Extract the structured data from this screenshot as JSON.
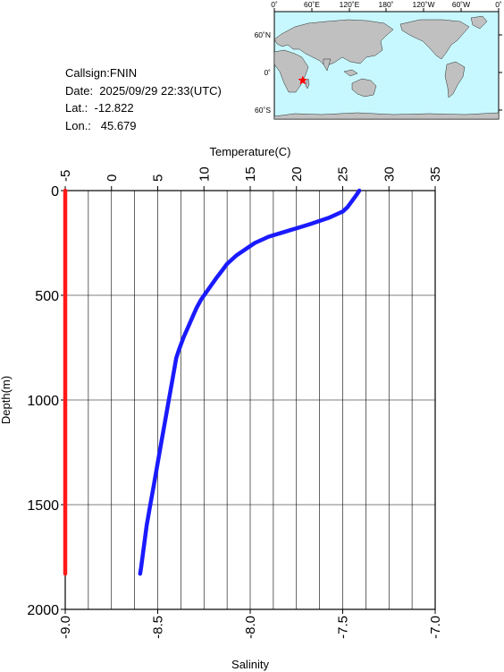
{
  "station": {
    "callsign": "Callsign:FNIN",
    "date": "Date:  2025/09/29 22:33(UTC)",
    "lat": "Lat.:  -12.822",
    "lon": "Lon.:   45.679"
  },
  "map": {
    "lon_labels": [
      "0˚",
      "60˚E",
      "120˚E",
      "180˚",
      "120˚W",
      "60˚W",
      "0˚"
    ],
    "lat_labels": [
      "60˚N",
      "0˚",
      "60˚S"
    ],
    "ocean_color": "#c8f8ff",
    "land_color": "#c0c0c0",
    "marker_color": "#ff0000",
    "marker_lat": -12.822,
    "marker_lon": 45.679
  },
  "chart_data": {
    "type": "line",
    "top_axis_label": "Temperature(C)",
    "bottom_axis_label": "Salinity",
    "ylabel": "Depth(m)",
    "temperature_ticks": [
      "-5",
      "0",
      "5",
      "10",
      "15",
      "20",
      "25",
      "30",
      "35"
    ],
    "salinity_ticks": [
      "-9.0",
      "-8.5",
      "-8.0",
      "-7.5",
      "-7.0"
    ],
    "depth_ticks": [
      "0",
      "500",
      "1000",
      "1500",
      "2000"
    ],
    "xlim_temperature": [
      -5,
      35
    ],
    "xlim_salinity": [
      -9.0,
      -7.0
    ],
    "ylim_depth": [
      0,
      2000
    ],
    "grid": true,
    "series": [
      {
        "axis": "temperature",
        "color": "#1a1aff",
        "depth": [
          0,
          20,
          50,
          80,
          100,
          130,
          160,
          180,
          200,
          220,
          250,
          280,
          310,
          350,
          380,
          420,
          470,
          520,
          560,
          600,
          650,
          700,
          760,
          800,
          900,
          1000,
          1100,
          1200,
          1300,
          1400,
          1500,
          1600,
          1700,
          1800,
          1830
        ],
        "values": [
          26.8,
          26.5,
          26.0,
          25.5,
          25.0,
          23.5,
          21.5,
          20.0,
          18.5,
          17.0,
          15.5,
          14.5,
          13.5,
          12.5,
          12.0,
          11.3,
          10.5,
          9.7,
          9.2,
          8.8,
          8.3,
          7.8,
          7.3,
          7.0,
          6.6,
          6.2,
          5.8,
          5.4,
          5.0,
          4.6,
          4.2,
          3.8,
          3.5,
          3.2,
          3.1
        ]
      },
      {
        "axis": "salinity",
        "color": "#ff1a1a",
        "depth": [
          0,
          1830
        ],
        "values": [
          -9.0,
          -9.0
        ]
      }
    ]
  }
}
